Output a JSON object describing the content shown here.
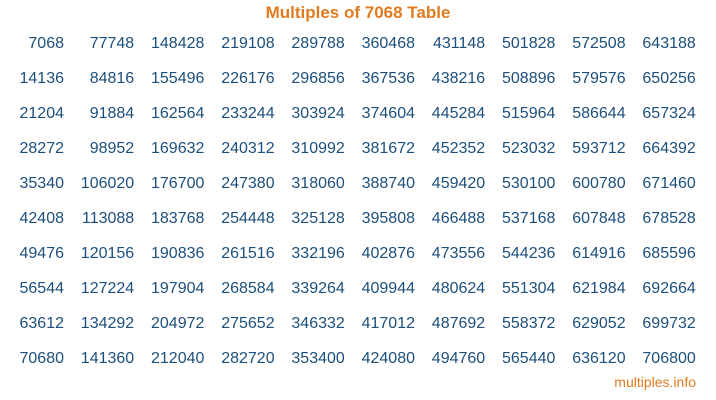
{
  "title": "Multiples of 7068 Table",
  "table": {
    "rows": [
      [
        7068,
        77748,
        148428,
        219108,
        289788,
        360468,
        431148,
        501828,
        572508,
        643188
      ],
      [
        14136,
        84816,
        155496,
        226176,
        296856,
        367536,
        438216,
        508896,
        579576,
        650256
      ],
      [
        21204,
        91884,
        162564,
        233244,
        303924,
        374604,
        445284,
        515964,
        586644,
        657324
      ],
      [
        28272,
        98952,
        169632,
        240312,
        310992,
        381672,
        452352,
        523032,
        593712,
        664392
      ],
      [
        35340,
        106020,
        176700,
        247380,
        318060,
        388740,
        459420,
        530100,
        600780,
        671460
      ],
      [
        42408,
        113088,
        183768,
        254448,
        325128,
        395808,
        466488,
        537168,
        607848,
        678528
      ],
      [
        49476,
        120156,
        190836,
        261516,
        332196,
        402876,
        473556,
        544236,
        614916,
        685596
      ],
      [
        56544,
        127224,
        197904,
        268584,
        339264,
        409944,
        480624,
        551304,
        621984,
        692664
      ],
      [
        63612,
        134292,
        204972,
        275652,
        346332,
        417012,
        487692,
        558372,
        629052,
        699732
      ],
      [
        70680,
        141360,
        212040,
        282720,
        353400,
        424080,
        494760,
        565440,
        636120,
        706800
      ]
    ]
  },
  "footer": "multiples.info"
}
